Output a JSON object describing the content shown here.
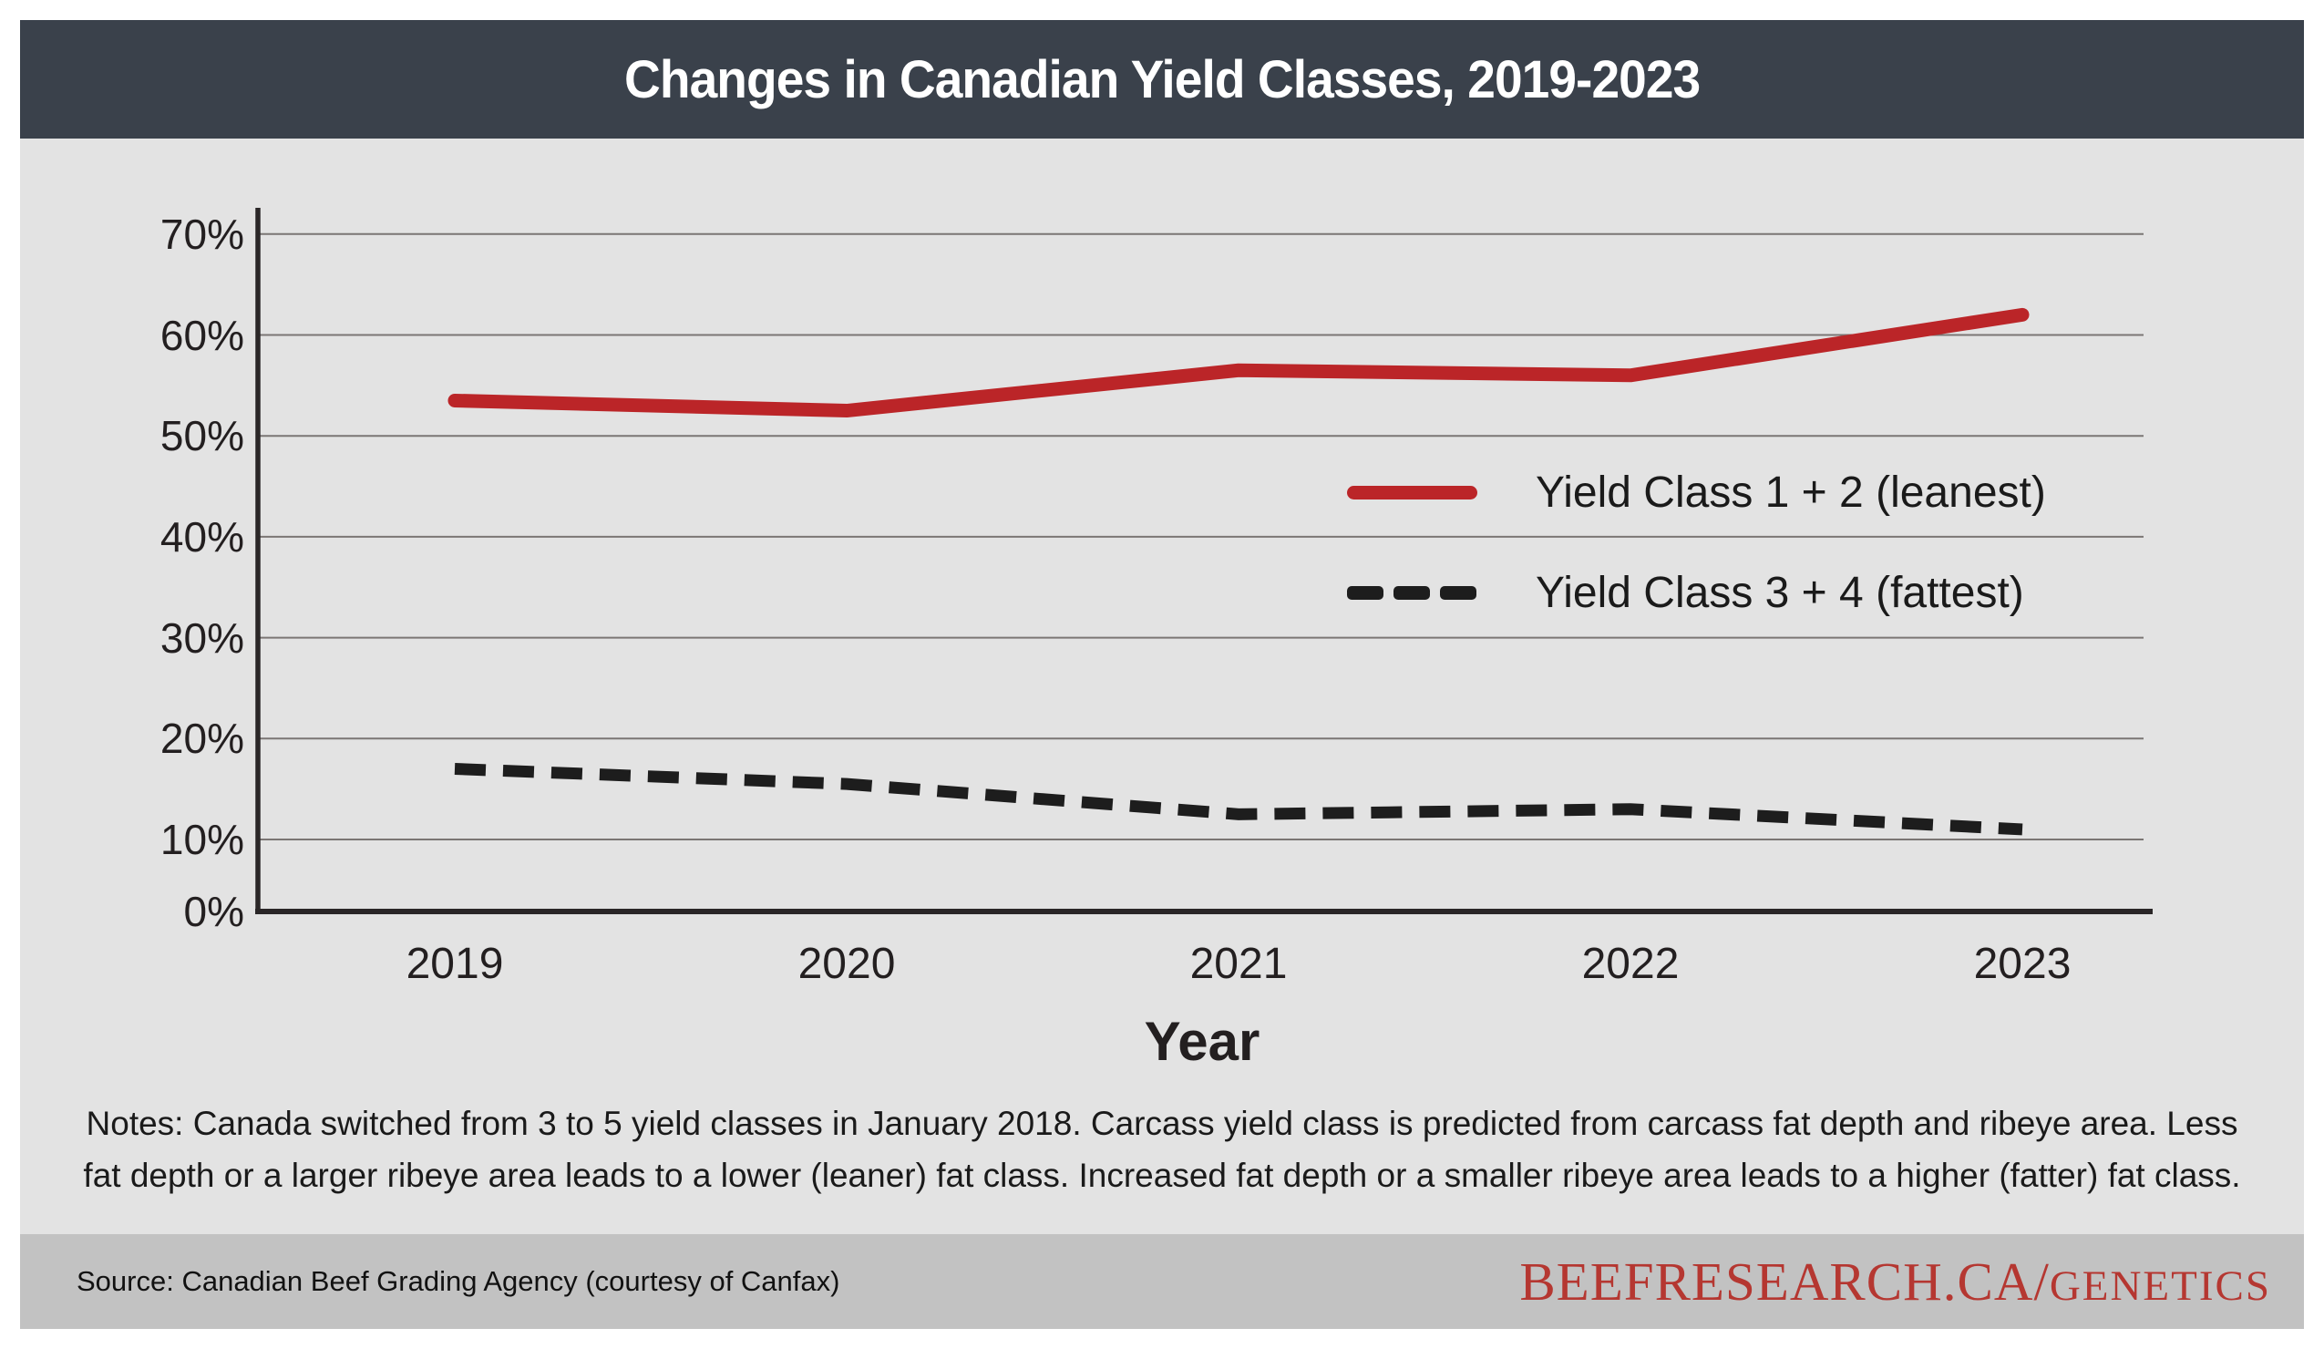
{
  "page": {
    "title": "Changes in Canadian Yield Classes, 2019-2023"
  },
  "chart_data": {
    "type": "line",
    "title": "Changes in Canadian Yield Classes, 2019-2023",
    "x": [
      2019,
      2020,
      2021,
      2022,
      2023
    ],
    "x_tick_labels": [
      "2019",
      "2020",
      "2021",
      "2022",
      "2023"
    ],
    "xlabel": "Year",
    "ylabel": "",
    "y_tick_labels": [
      "0%",
      "10%",
      "20%",
      "30%",
      "40%",
      "50%",
      "60%",
      "70%"
    ],
    "ylim": [
      0,
      70
    ],
    "grid": "horizontal",
    "legend_position": "inside-right",
    "series": [
      {
        "name": "Yield Class 1 + 2 (leanest)",
        "style": "solid",
        "color": "#bb2528",
        "values": [
          53.5,
          52.5,
          56.5,
          56,
          62
        ]
      },
      {
        "name": "Yield Class 3 + 4 (fattest)",
        "style": "dashed",
        "color": "#1d1d1d",
        "values": [
          17,
          15.5,
          12.5,
          13,
          11
        ]
      }
    ]
  },
  "notes": {
    "line1": "Notes: Canada switched from 3 to 5 yield classes in January 2018. Carcass yield class is predicted from carcass fat depth and ribeye area. Less",
    "line2": "fat depth or a larger ribeye area leads to a lower (leaner) fat class. Increased fat depth or a smaller ribeye area leads to a higher (fatter) fat class."
  },
  "footer": {
    "source": "Source: Canadian Beef Grading Agency (courtesy of Canfax)",
    "brand_main": "BEEFRESEARCH.CA/",
    "brand_sub": "GENETICS"
  },
  "colors": {
    "titlebar_bg": "#3a414b",
    "chart_bg": "#e3e3e3",
    "band_bg": "#c2c2c2",
    "gridline": "#7b7674",
    "axis": "#2a2627",
    "series_red": "#bb2528",
    "series_black": "#1d1d1d",
    "brand_red": "#b53731"
  }
}
